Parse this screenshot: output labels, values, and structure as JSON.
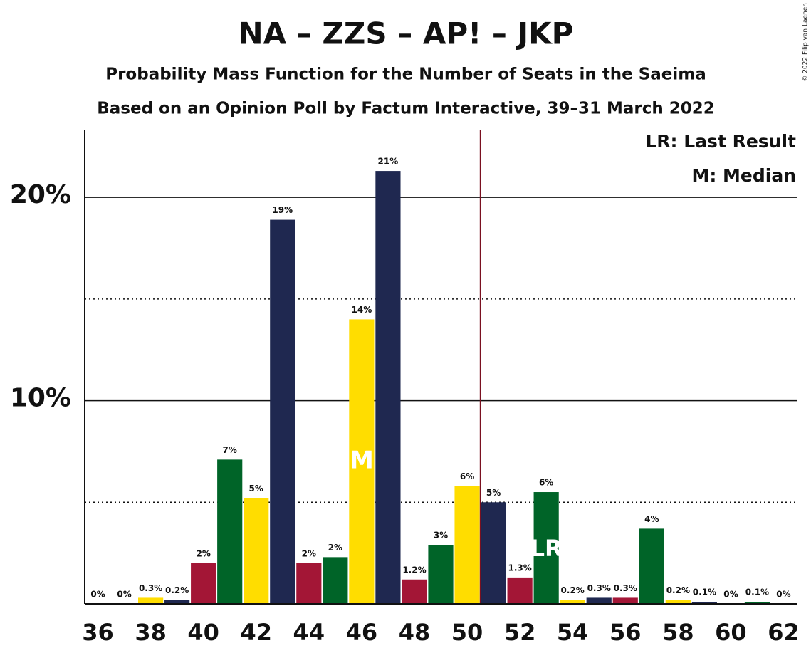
{
  "chart_data": {
    "type": "bar",
    "title": "NA – ZZS – AP! – JKP",
    "subtitle": "Probability Mass Function for the Number of Seats in the Saeima",
    "subtitle2": "Based on an Opinion Poll by Factum Interactive, 39–31 March 2022",
    "copyright": "© 2022 Filip van Laenen",
    "legend": [
      "LR: Last Result",
      "M: Median"
    ],
    "x": [
      36,
      37,
      38,
      39,
      40,
      41,
      42,
      43,
      44,
      45,
      46,
      47,
      48,
      49,
      50,
      51,
      52,
      53,
      54,
      55,
      56,
      57,
      58,
      59,
      60,
      61,
      62
    ],
    "values": [
      0,
      0,
      0.3,
      0.2,
      2.0,
      7.1,
      5.2,
      18.9,
      2.0,
      2.3,
      14.0,
      21.3,
      1.2,
      2.9,
      5.8,
      5.0,
      1.3,
      5.5,
      0.2,
      0.3,
      0.3,
      3.7,
      0.2,
      0.1,
      0,
      0.1,
      0
    ],
    "value_labels": [
      "0%",
      "0%",
      "0.3%",
      "0.2%",
      "2%",
      "7%",
      "5%",
      "19%",
      "2%",
      "2%",
      "14%",
      "21%",
      "1.2%",
      "3%",
      "6%",
      "5%",
      "1.3%",
      "6%",
      "0.2%",
      "0.3%",
      "0.3%",
      "4%",
      "0.2%",
      "0.1%",
      "0%",
      "0.1%",
      "0%"
    ],
    "palette": [
      "#a31636",
      "#006428",
      "#ffdd00",
      "#1f2850"
    ],
    "median": 46,
    "median_label": "M",
    "last_result": 53,
    "last_result_label": "LR",
    "majority_line": 50.5,
    "majority_color": "#7a1020",
    "xlim": [
      35.5,
      62.5
    ],
    "xticks": [
      36,
      38,
      40,
      42,
      44,
      46,
      48,
      50,
      52,
      54,
      56,
      58,
      60,
      62
    ],
    "ylim": [
      0,
      23.3
    ],
    "yticks": [
      {
        "value": 10,
        "label": "10%"
      },
      {
        "value": 20,
        "label": "20%"
      }
    ],
    "minor_yticks": [
      5,
      15
    ],
    "grid": true
  }
}
